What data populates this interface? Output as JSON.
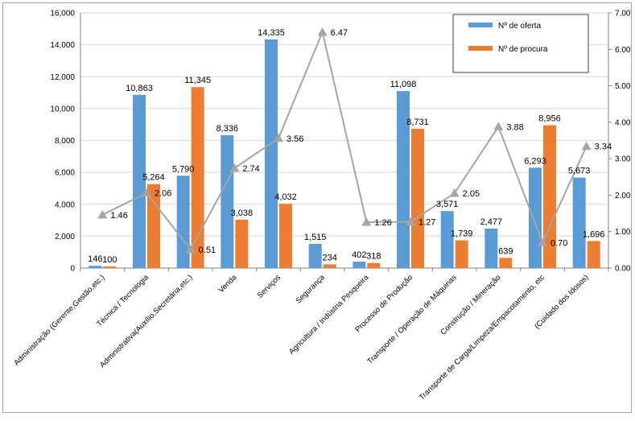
{
  "chart_data": {
    "type": "bar",
    "title": "",
    "xlabel": "",
    "ylabel": "",
    "y2label": "",
    "categories": [
      "Administração (Gerente,Gestão,etc.)",
      "Técnica / Tecnologia",
      "Administrativa(Auxílio,Secretária,etc.)",
      "Venda",
      "Serviços",
      "Segurança",
      "Agricultura / Indústria Pesqueira",
      "Processo de Produção",
      "Transporte / Operação de Máquinas",
      "Construção / Mineração",
      "Transporte de Carga/Limpeza/Empacotamento, etc",
      "(Cuidado dos Idosos)"
    ],
    "series": [
      {
        "name": "Nº de oferta",
        "type": "bar",
        "color": "#5B9BD5",
        "values": [
          146,
          10863,
          5790,
          8336,
          14335,
          1515,
          402,
          11098,
          3571,
          2477,
          6293,
          5673
        ],
        "labels": [
          "146",
          "10,863",
          "5,790",
          "8,336",
          "14,335",
          "1,515",
          "402",
          "11,098",
          "3,571",
          "2,477",
          "6,293",
          "5,673"
        ]
      },
      {
        "name": "Nº de procura",
        "type": "bar",
        "color": "#ED7D31",
        "values": [
          100,
          5264,
          11345,
          3038,
          4032,
          234,
          318,
          8731,
          1739,
          639,
          8956,
          1696
        ],
        "labels": [
          "100",
          "5,264",
          "11,345",
          "3,038",
          "4,032",
          "234",
          "318",
          "8,731",
          "1,739",
          "639",
          "8,956",
          "1,696"
        ]
      },
      {
        "type": "line",
        "axis": "secondary",
        "color": "#A5A5A5",
        "values": [
          1.46,
          2.06,
          0.51,
          2.74,
          3.56,
          6.47,
          1.26,
          1.27,
          2.05,
          3.88,
          0.7,
          3.34
        ],
        "labels": [
          "1.46",
          "2.06",
          "0.51",
          "2.74",
          "3.56",
          "6.47",
          "1.26",
          "1.27",
          "2.05",
          "3.88",
          "0.70",
          "3.34"
        ]
      }
    ],
    "ylim": [
      0,
      16000
    ],
    "yticks": [
      "0",
      "2,000",
      "4,000",
      "6,000",
      "8,000",
      "10,000",
      "12,000",
      "14,000",
      "16,000"
    ],
    "y2lim": [
      0,
      7
    ],
    "y2ticks": [
      "0.00",
      "1.00",
      "2.00",
      "3.00",
      "4.00",
      "5.00",
      "6.00",
      "7.00"
    ],
    "grid": true,
    "legend_position": "top-right"
  }
}
